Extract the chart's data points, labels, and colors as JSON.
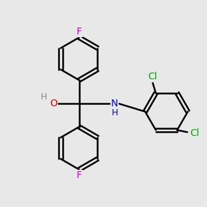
{
  "bg_color": "#e8e8e8",
  "bond_color": "#000000",
  "atom_colors": {
    "F": "#cc00cc",
    "O": "#cc0000",
    "H_gray": "#888888",
    "N": "#0000cc",
    "Cl": "#00aa00"
  },
  "bond_width": 1.8,
  "dbo": 0.09,
  "r": 1.05
}
